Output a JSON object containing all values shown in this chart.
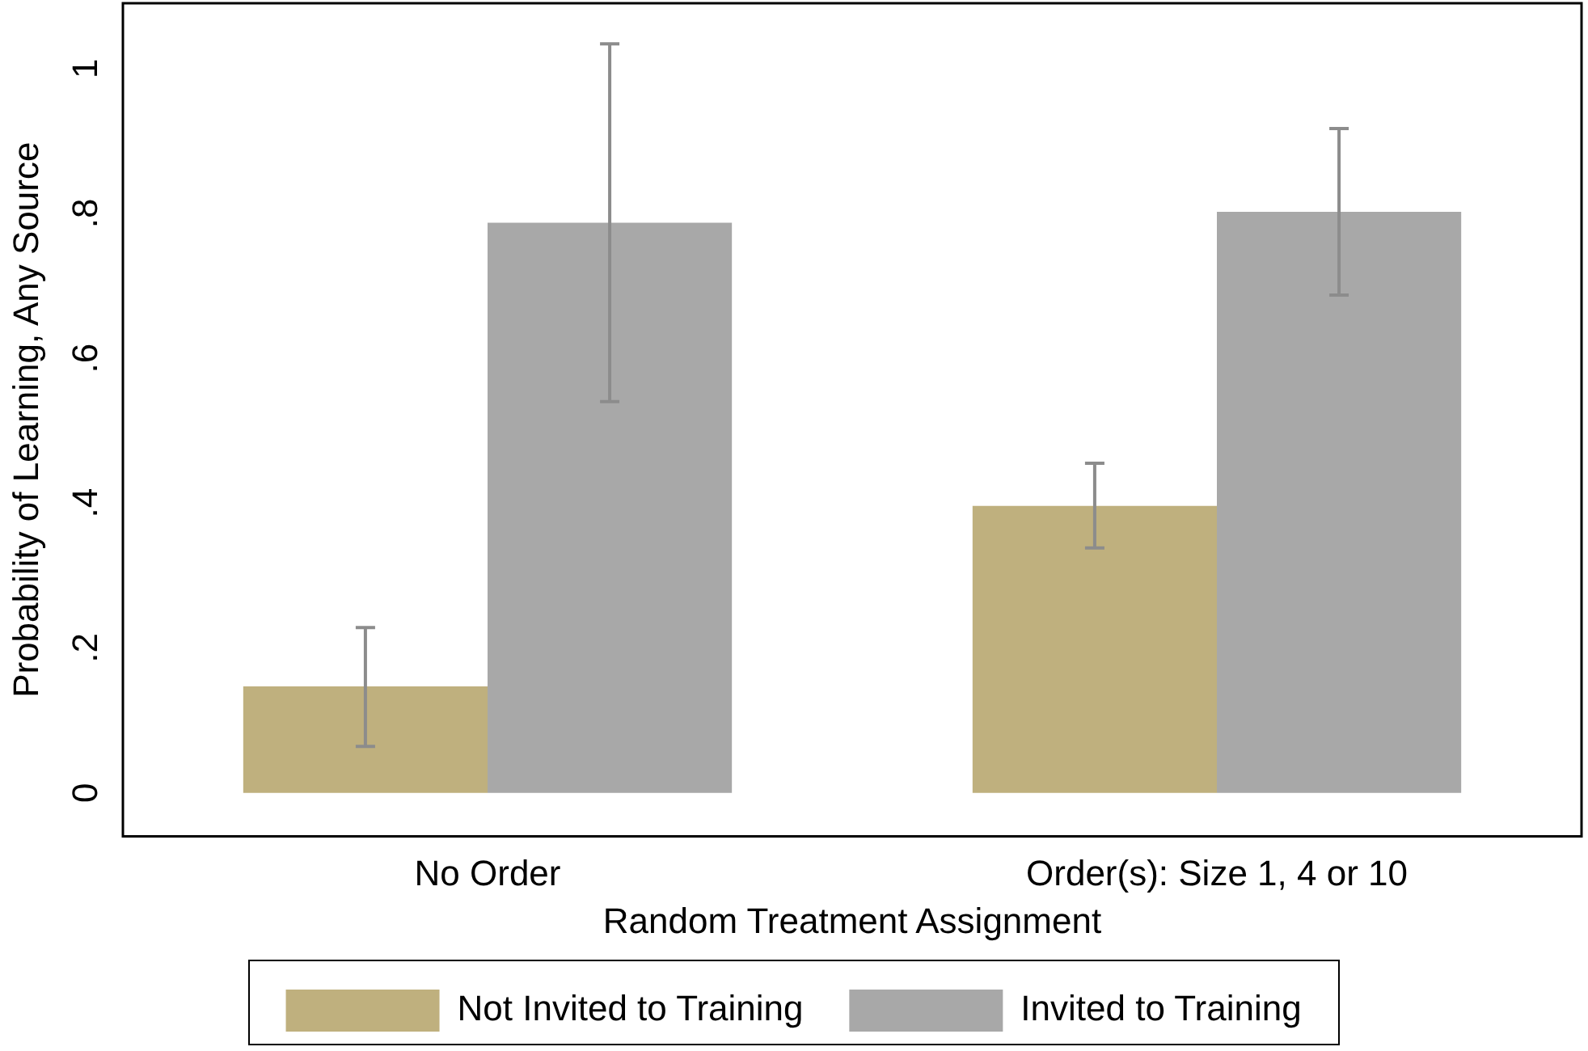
{
  "chart_data": {
    "type": "bar",
    "xlabel": "Random Treatment Assignment",
    "ylabel": "Probability of Learning, Any Source",
    "categories": [
      "No Order",
      "Order(s): Size 1, 4 or 10"
    ],
    "series": [
      {
        "name": "Not Invited to Training",
        "color": "#bfb07e",
        "values": [
          0.147,
          0.396
        ],
        "errors": [
          [
            0.064,
            0.228
          ],
          [
            0.338,
            0.455
          ]
        ]
      },
      {
        "name": "Invited to Training",
        "color": "#a8a8a8",
        "values": [
          0.787,
          0.802
        ],
        "errors": [
          [
            0.54,
            1.034
          ],
          [
            0.687,
            0.917
          ]
        ]
      }
    ],
    "ylim": [
      -0.06,
      1.09
    ],
    "yticks": [
      0,
      {
        "value": 0.2,
        "label": ".2"
      },
      {
        "value": 0.4,
        "label": ".4"
      },
      {
        "value": 0.6,
        "label": ".6"
      },
      {
        "value": 0.8,
        "label": ".8"
      },
      1
    ],
    "grid": false,
    "legend": "bottom"
  }
}
